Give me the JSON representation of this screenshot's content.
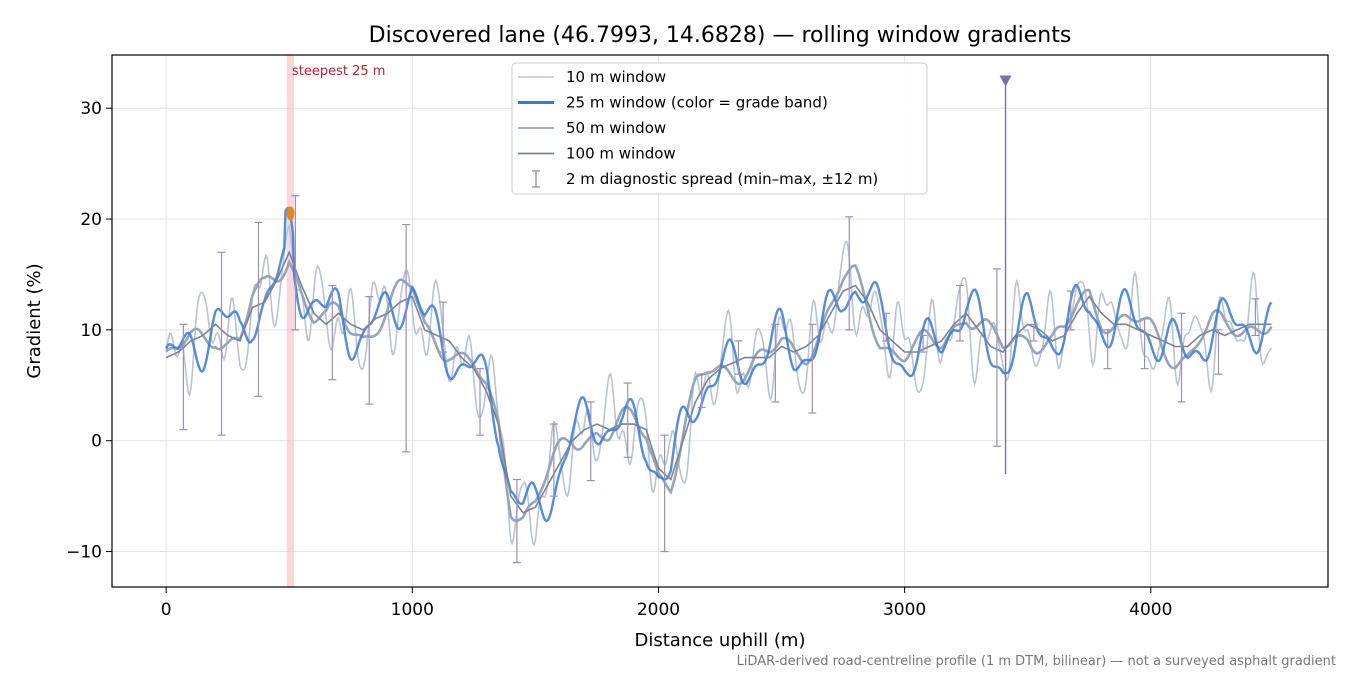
{
  "chart_data": {
    "type": "line",
    "title": "Discovered lane (46.7993, 14.6828) — rolling window gradients",
    "xlabel": "Distance uphill (m)",
    "ylabel": "Gradient (%)",
    "xlim": [
      -220,
      4720
    ],
    "ylim": [
      -13.2,
      34.8
    ],
    "xticks": [
      0,
      1000,
      2000,
      3000,
      4000
    ],
    "yticks": [
      -10,
      0,
      10,
      20,
      30
    ],
    "grid": true,
    "legend_position": "top-center",
    "footnote": "LiDAR-derived road-centreline profile (1 m DTM, bilinear) — not a surveyed asphalt gradient",
    "annotations": {
      "steepest_label": "steepest 25 m",
      "steepest_range": [
        490,
        520
      ],
      "steepest_peak": {
        "x": 505,
        "y": 20.5
      },
      "marker": {
        "x": 3410,
        "y": 32.5
      }
    },
    "colors": {
      "w10": "#b8c4d2",
      "w25": "#3a78d6",
      "w50": "#97a5b8",
      "w100": "#7a8494",
      "spread": "#9b8fbc",
      "band": "#f4b7bd",
      "peak": "#e08a1e",
      "marker": "#7d6fa8"
    },
    "legend": [
      {
        "key": "w10",
        "label": "10 m window"
      },
      {
        "key": "w25",
        "label": "25 m window (color = grade band)"
      },
      {
        "key": "w50",
        "label": "50 m window"
      },
      {
        "key": "w100",
        "label": "100 m window"
      },
      {
        "key": "spread",
        "label": "2 m diagnostic spread (min–max, ±12 m)"
      }
    ],
    "profile": {
      "x": [
        0,
        50,
        100,
        150,
        200,
        250,
        300,
        350,
        400,
        450,
        500,
        550,
        600,
        650,
        700,
        750,
        800,
        850,
        900,
        950,
        1000,
        1050,
        1100,
        1150,
        1200,
        1250,
        1300,
        1350,
        1400,
        1450,
        1500,
        1550,
        1600,
        1650,
        1700,
        1750,
        1800,
        1850,
        1900,
        1950,
        2000,
        2050,
        2100,
        2150,
        2200,
        2250,
        2300,
        2350,
        2400,
        2450,
        2500,
        2550,
        2600,
        2650,
        2700,
        2750,
        2800,
        2850,
        2900,
        2950,
        3000,
        3050,
        3100,
        3150,
        3200,
        3250,
        3300,
        3350,
        3400,
        3450,
        3500,
        3550,
        3600,
        3650,
        3700,
        3750,
        3800,
        3850,
        3900,
        3950,
        4000,
        4050,
        4100,
        4150,
        4200,
        4250,
        4300,
        4350,
        4400,
        4450,
        4490
      ],
      "w100": [
        7.5,
        8.0,
        9.0,
        9.5,
        10.5,
        9.5,
        9.0,
        12.0,
        12.5,
        14.5,
        17.0,
        14.0,
        11.5,
        10.5,
        11.5,
        10.5,
        10.0,
        11.0,
        11.5,
        12.5,
        13.0,
        10.0,
        9.5,
        9.0,
        7.5,
        6.5,
        4.5,
        1.5,
        -5.0,
        -6.5,
        -6.0,
        -4.0,
        -2.0,
        0.0,
        1.0,
        1.5,
        1.0,
        1.5,
        1.5,
        1.0,
        -2.5,
        -3.5,
        0.0,
        3.5,
        5.5,
        6.5,
        7.0,
        7.5,
        7.5,
        7.5,
        8.5,
        8.0,
        8.5,
        9.5,
        11.5,
        13.5,
        14.0,
        12.5,
        10.0,
        9.0,
        8.0,
        8.0,
        8.5,
        9.0,
        10.5,
        11.5,
        10.0,
        8.5,
        8.0,
        9.5,
        10.5,
        10.0,
        9.0,
        9.5,
        11.5,
        13.0,
        11.5,
        10.5,
        10.5,
        10.0,
        9.5,
        9.0,
        8.5,
        8.5,
        9.5,
        10.0,
        9.5,
        10.0,
        10.5,
        10.5,
        10.5
      ]
    },
    "spread_bars": [
      {
        "x": 70,
        "lo": 1.0,
        "hi": 10.5
      },
      {
        "x": 225,
        "lo": 0.5,
        "hi": 17.0
      },
      {
        "x": 375,
        "lo": 4.0,
        "hi": 19.7
      },
      {
        "x": 525,
        "lo": 10.0,
        "hi": 22.1
      },
      {
        "x": 675,
        "lo": 5.5,
        "hi": 14.0
      },
      {
        "x": 825,
        "lo": 3.3,
        "hi": 13.0
      },
      {
        "x": 975,
        "lo": -1.0,
        "hi": 19.5
      },
      {
        "x": 1125,
        "lo": 8.0,
        "hi": 12.5
      },
      {
        "x": 1275,
        "lo": 0.5,
        "hi": 6.5
      },
      {
        "x": 1425,
        "lo": -11.0,
        "hi": -3.5
      },
      {
        "x": 1575,
        "lo": -5.0,
        "hi": 1.5
      },
      {
        "x": 1725,
        "lo": -3.6,
        "hi": 3.5
      },
      {
        "x": 1875,
        "lo": -1.5,
        "hi": 5.2
      },
      {
        "x": 2025,
        "lo": -10.0,
        "hi": 0.5
      },
      {
        "x": 2175,
        "lo": 3.0,
        "hi": 6.0
      },
      {
        "x": 2325,
        "lo": 6.0,
        "hi": 9.0
      },
      {
        "x": 2475,
        "lo": 3.5,
        "hi": 10.5
      },
      {
        "x": 2625,
        "lo": 2.5,
        "hi": 10.5
      },
      {
        "x": 2775,
        "lo": 10.0,
        "hi": 20.2
      },
      {
        "x": 2925,
        "lo": 9.0,
        "hi": 11.5
      },
      {
        "x": 3075,
        "lo": 8.0,
        "hi": 9.5
      },
      {
        "x": 3225,
        "lo": 9.0,
        "hi": 14.0
      },
      {
        "x": 3375,
        "lo": -0.5,
        "hi": 15.5
      },
      {
        "x": 3525,
        "lo": 9.0,
        "hi": 10.5
      },
      {
        "x": 3675,
        "lo": 10.0,
        "hi": 13.5
      },
      {
        "x": 3825,
        "lo": 6.5,
        "hi": 10.0
      },
      {
        "x": 3975,
        "lo": 6.5,
        "hi": 11.0
      },
      {
        "x": 4125,
        "lo": 3.5,
        "hi": 11.5
      },
      {
        "x": 4275,
        "lo": 6.0,
        "hi": 10.0
      },
      {
        "x": 4425,
        "lo": 9.5,
        "hi": 12.8
      }
    ]
  }
}
